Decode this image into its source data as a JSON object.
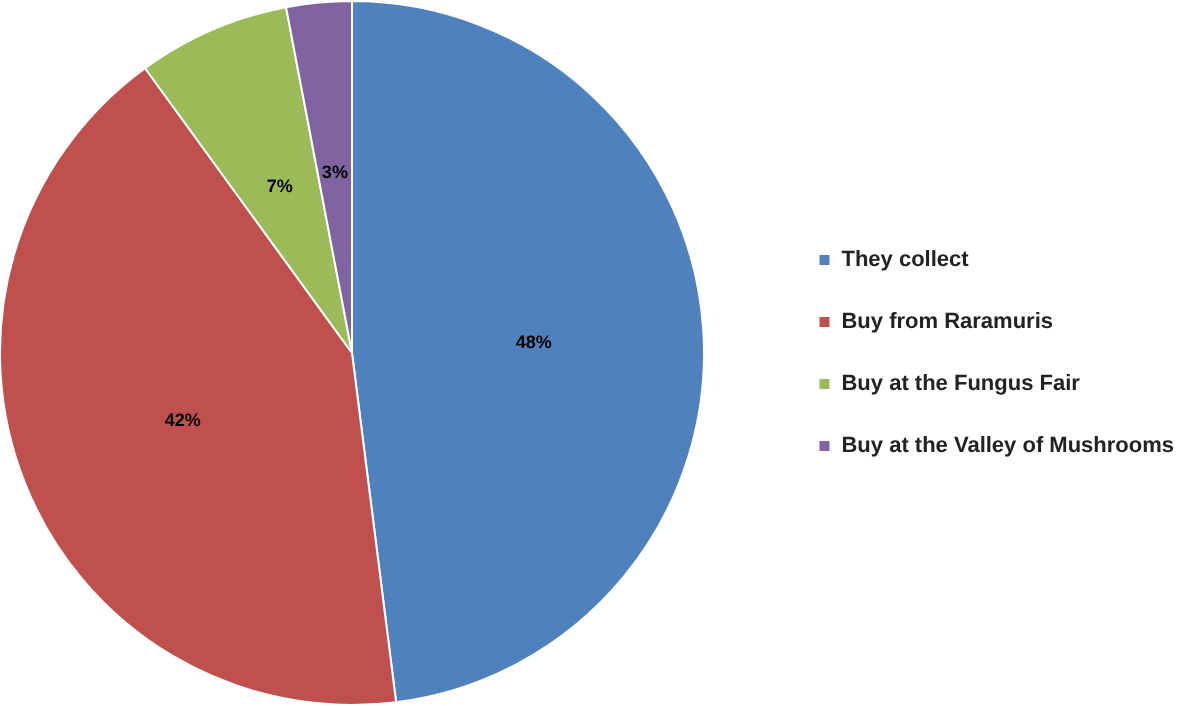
{
  "chart_data": {
    "type": "pie",
    "categories": [
      "They collect",
      "Buy from Raramuris",
      "Buy at the Fungus Fair",
      "Buy at the Valley of Mushrooms"
    ],
    "values": [
      48,
      42,
      7,
      3
    ],
    "colors": [
      "#4f81bd",
      "#c0504d",
      "#9bbb59",
      "#8064a2"
    ],
    "value_labels": [
      "48%",
      "42%",
      "7%",
      "3%"
    ],
    "legend": "right"
  }
}
